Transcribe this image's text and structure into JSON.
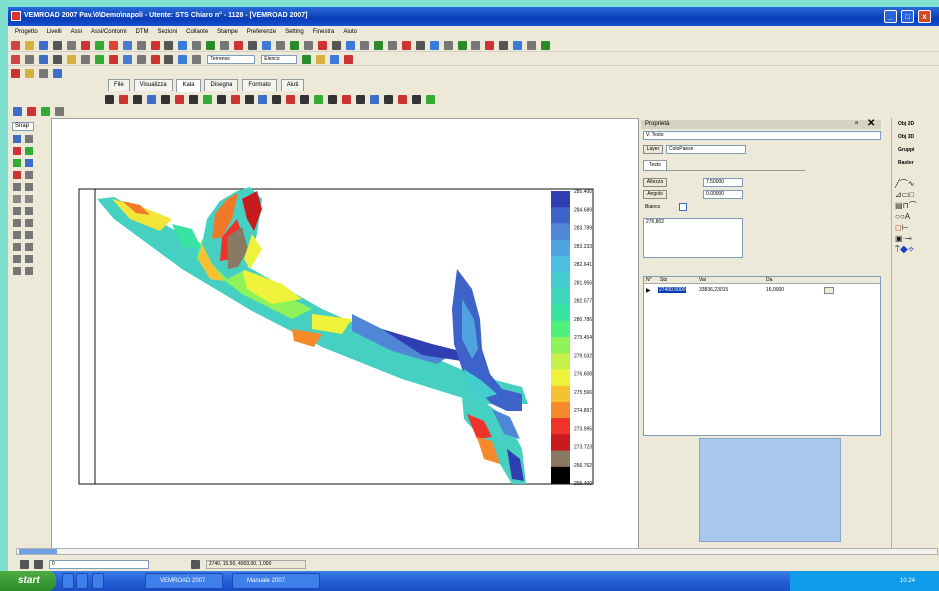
{
  "window": {
    "title": "VEMROAD 2007 Pav.\\0\\Demo\\napoli - Utente: STS Chiaro n° - 1128 - [VEMROAD 2007]",
    "buttons": [
      "_",
      "□",
      "x"
    ]
  },
  "menu": [
    "Progetto",
    "Livelli",
    "Assi",
    "Assi/Contorni",
    "DTM",
    "Sezioni",
    "Collante",
    "Stampe",
    "Preferenze",
    "Setting",
    "Finestra",
    "Aiuto"
  ],
  "toolbar": {
    "layer_combo": "Terrenos",
    "tool_combo": "Elenco"
  },
  "tabs": [
    "File",
    "Visualizza",
    "Kala",
    "Disegna",
    "Formato",
    "Aiuti"
  ],
  "active_tab": "Kala",
  "left_tools": {
    "header": "Snap"
  },
  "legend": {
    "values": [
      "285.400",
      "284.689",
      "283.789",
      "283.233",
      "282.641",
      "281.956",
      "282.577",
      "280.786",
      "279.454",
      "279.032",
      "276.608",
      "275.566",
      "274.897",
      "273.995",
      "273.723",
      "266.762",
      "265.400"
    ],
    "colors": [
      "#2f3eb0",
      "#3d63c8",
      "#4f86d6",
      "#4fa3df",
      "#4dbde3",
      "#42cdd0",
      "#3fd8bd",
      "#39e4a3",
      "#4eef7a",
      "#8ef25a",
      "#c6f04a",
      "#eef23a",
      "#f6c232",
      "#f48a2a",
      "#f0332a",
      "#c91a1e",
      "#8a7a64",
      "#000000"
    ]
  },
  "properties": {
    "title": "Proprietà",
    "object": "V. Testo",
    "layer_button": "Layer",
    "layer_value": "ColoPaese",
    "text_tab": "Testo",
    "altezza_label": "Altezza",
    "altezza_value": "7.50000",
    "angolo_label": "Angolo",
    "angolo_value": "0.00000",
    "bianco_label": "Bianco",
    "text_content": "276,802",
    "table_headers": [
      "N°",
      "Stz",
      "Vai",
      "Da"
    ],
    "table_row": [
      "1",
      "27400.5000",
      "33836,23015",
      "16,0000"
    ]
  },
  "right_panel": {
    "items": [
      "Obj 2D",
      "Obj 3D",
      "Gruppi",
      "Raster"
    ]
  },
  "status": {
    "command": "2740, 15.50, 4003.00, 1.000",
    "layer": "0"
  },
  "taskbar": {
    "start": "start",
    "tasks": [
      "VEMROAD 2007",
      "Manuale 2007"
    ],
    "clock": "10.24"
  }
}
